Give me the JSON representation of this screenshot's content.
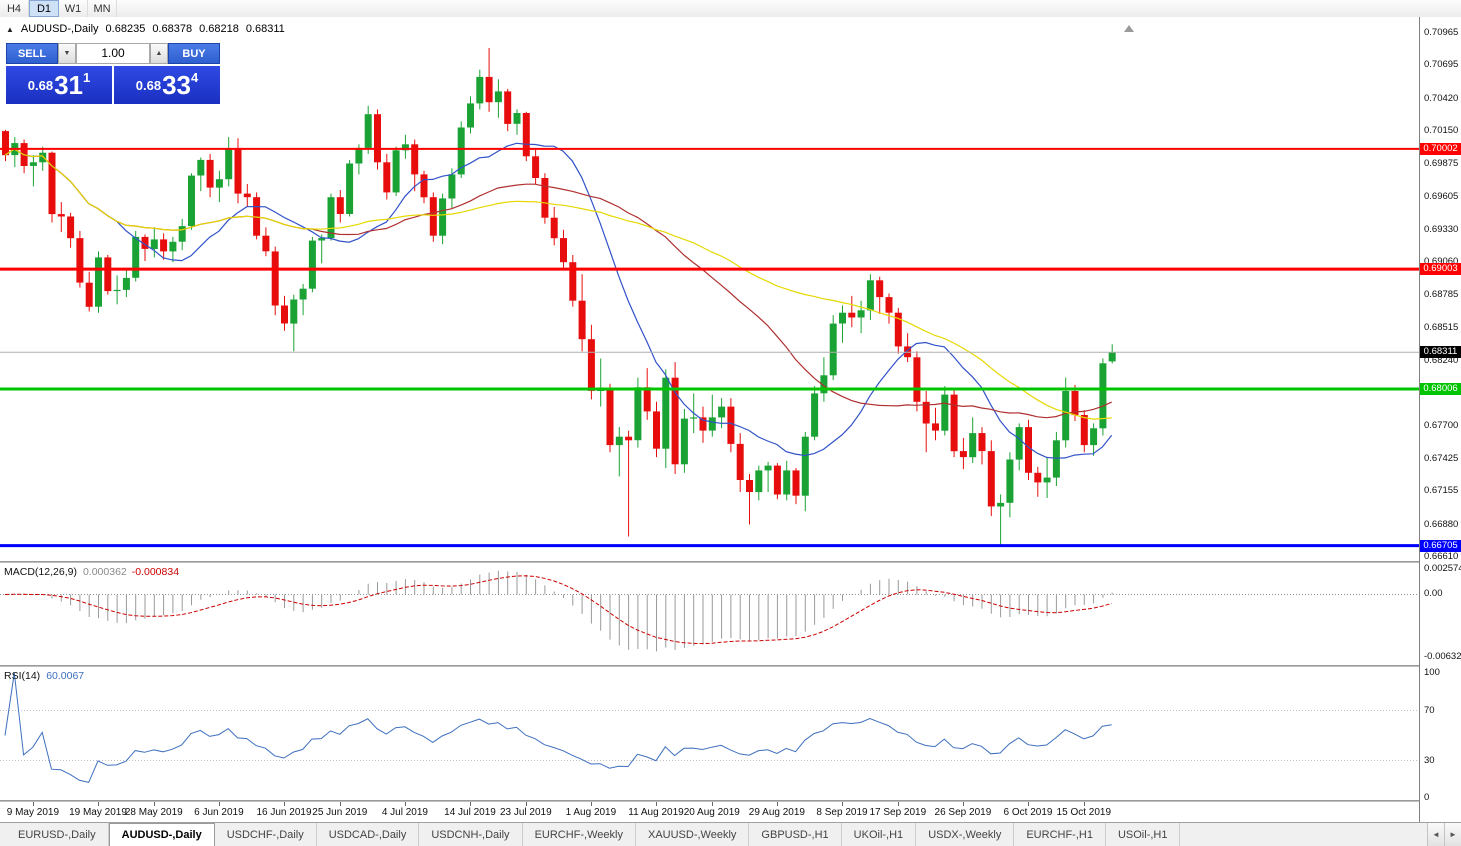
{
  "toolbar": {
    "timeframes": [
      {
        "label": "H4",
        "active": false
      },
      {
        "label": "D1",
        "active": true
      },
      {
        "label": "W1",
        "active": false
      },
      {
        "label": "MN",
        "active": false
      }
    ]
  },
  "icons": {
    "chart": "▲",
    "volume_down": "▼",
    "volume_up": "▲",
    "tab_scroll_left": "◄",
    "tab_scroll_right": "►"
  },
  "chart_header": {
    "symbol": "AUDUSD-,Daily",
    "open": "0.68235",
    "high": "0.68378",
    "low": "0.68218",
    "close": "0.68311"
  },
  "trade_panel": {
    "sell_label": "SELL",
    "buy_label": "BUY",
    "volume": "1.00",
    "bid": {
      "prefix": "0.68",
      "big": "31",
      "sup": "1"
    },
    "ask": {
      "prefix": "0.68",
      "big": "33",
      "sup": "4"
    }
  },
  "price_axis": {
    "ticks": [
      "0.70965",
      "0.70695",
      "0.70420",
      "0.70150",
      "0.69875",
      "0.69605",
      "0.69330",
      "0.69060",
      "0.68785",
      "0.68515",
      "0.68240",
      "0.67970",
      "0.67700",
      "0.67425",
      "0.67155",
      "0.66880",
      "0.66610"
    ]
  },
  "hlines": [
    {
      "value": 0.70002,
      "label": "0.70002",
      "color": "#ff0000",
      "width": 2
    },
    {
      "value": 0.69003,
      "label": "0.69003",
      "color": "#ff0000",
      "width": 3
    },
    {
      "value": 0.68006,
      "label": "0.68006",
      "color": "#00c400",
      "width": 3
    },
    {
      "value": 0.66705,
      "label": "0.66705",
      "color": "#0000ff",
      "width": 3
    }
  ],
  "bid_line": {
    "value": 0.68311,
    "label": "0.68311",
    "tag_color": "#000000",
    "line_color": "#b0b0b0"
  },
  "indicators": {
    "macd": {
      "name": "MACD(12,26,9)",
      "value_main": "0.000362",
      "value_signal": "-0.000834",
      "axis_labels": [
        "0.002574",
        "0.00",
        "-0.006326"
      ],
      "range": [
        -0.006326,
        0.002574
      ],
      "fast": 12,
      "slow": 26,
      "signal": 9,
      "histogram_color": "#9a9a9a",
      "signal_color": "#cc0000"
    },
    "rsi": {
      "name": "RSI(14)",
      "value": "60.0067",
      "period": 14,
      "axis_labels": [
        "100",
        "70",
        "30",
        "0"
      ],
      "levels": [
        70,
        30
      ],
      "line_color": "#3e6fbe"
    }
  },
  "x_axis": {
    "labels": [
      {
        "text": "9 May 2019",
        "bar": 3
      },
      {
        "text": "19 May 2019",
        "bar": 10
      },
      {
        "text": "28 May 2019",
        "bar": 16
      },
      {
        "text": "6 Jun 2019",
        "bar": 23
      },
      {
        "text": "16 Jun 2019",
        "bar": 30
      },
      {
        "text": "25 Jun 2019",
        "bar": 36
      },
      {
        "text": "4 Jul 2019",
        "bar": 43
      },
      {
        "text": "14 Jul 2019",
        "bar": 50
      },
      {
        "text": "23 Jul 2019",
        "bar": 56
      },
      {
        "text": "1 Aug 2019",
        "bar": 63
      },
      {
        "text": "11 Aug 2019",
        "bar": 70
      },
      {
        "text": "20 Aug 2019",
        "bar": 76
      },
      {
        "text": "29 Aug 2019",
        "bar": 83
      },
      {
        "text": "8 Sep 2019",
        "bar": 90
      },
      {
        "text": "17 Sep 2019",
        "bar": 96
      },
      {
        "text": "26 Sep 2019",
        "bar": 103
      },
      {
        "text": "6 Oct 2019",
        "bar": 110
      },
      {
        "text": "15 Oct 2019",
        "bar": 116
      }
    ]
  },
  "tabs": {
    "items": [
      {
        "label": "EURUSD-,Daily",
        "active": false
      },
      {
        "label": "AUDUSD-,Daily",
        "active": true
      },
      {
        "label": "USDCHF-,Daily",
        "active": false
      },
      {
        "label": "USDCAD-,Daily",
        "active": false
      },
      {
        "label": "USDCNH-,Daily",
        "active": false
      },
      {
        "label": "EURCHF-,Weekly",
        "active": false
      },
      {
        "label": "XAUUSD-,Weekly",
        "active": false
      },
      {
        "label": "GBPUSD-,H1",
        "active": false
      },
      {
        "label": "UKOil-,H1",
        "active": false
      },
      {
        "label": "USDX-,Weekly",
        "active": false
      },
      {
        "label": "EURCHF-,H1",
        "active": false
      },
      {
        "label": "USOil-,H1",
        "active": false
      }
    ]
  },
  "chart_data": {
    "type": "candlestick",
    "symbol": "AUDUSD",
    "timeframe": "Daily",
    "title": "AUDUSD-,Daily",
    "colors": {
      "up": "#1aa334",
      "down": "#e80d0d"
    },
    "overlays": [
      {
        "name": "ma-fast-line",
        "period": 13,
        "color": "#3152c8"
      },
      {
        "name": "ma-mid-line",
        "period": 34,
        "color": "#b03030"
      },
      {
        "name": "ma-slow-line",
        "period": 55,
        "color": "#e6d800"
      }
    ],
    "hlevels": [
      0.70002,
      0.69003,
      0.68006,
      0.66705
    ],
    "last_ohlc": {
      "open": 0.68235,
      "high": 0.68378,
      "low": 0.68218,
      "close": 0.68311
    },
    "candles": [
      [
        0.7015,
        0.7016,
        0.699,
        0.6995
      ],
      [
        0.6995,
        0.701,
        0.6985,
        0.7005
      ],
      [
        0.7005,
        0.7008,
        0.698,
        0.6986
      ],
      [
        0.6986,
        0.6995,
        0.6969,
        0.6989
      ],
      [
        0.6989,
        0.7002,
        0.6982,
        0.6997
      ],
      [
        0.6997,
        0.6998,
        0.6939,
        0.6946
      ],
      [
        0.6946,
        0.6956,
        0.6931,
        0.6944
      ],
      [
        0.6944,
        0.6947,
        0.6918,
        0.6926
      ],
      [
        0.6926,
        0.6932,
        0.6885,
        0.6889
      ],
      [
        0.6889,
        0.6898,
        0.6865,
        0.6869
      ],
      [
        0.6869,
        0.6915,
        0.6864,
        0.691
      ],
      [
        0.691,
        0.6912,
        0.6879,
        0.6882
      ],
      [
        0.6882,
        0.6895,
        0.6871,
        0.6883
      ],
      [
        0.6883,
        0.69,
        0.6877,
        0.6893
      ],
      [
        0.6893,
        0.6932,
        0.689,
        0.6927
      ],
      [
        0.6927,
        0.6929,
        0.6907,
        0.6917
      ],
      [
        0.6917,
        0.6935,
        0.691,
        0.6925
      ],
      [
        0.6925,
        0.693,
        0.6908,
        0.6915
      ],
      [
        0.6915,
        0.6927,
        0.6906,
        0.6923
      ],
      [
        0.6923,
        0.6942,
        0.6916,
        0.6936
      ],
      [
        0.6936,
        0.698,
        0.6933,
        0.6978
      ],
      [
        0.6978,
        0.6993,
        0.6965,
        0.6991
      ],
      [
        0.6991,
        0.6996,
        0.696,
        0.6968
      ],
      [
        0.6968,
        0.6982,
        0.6956,
        0.6975
      ],
      [
        0.6975,
        0.701,
        0.6969,
        0.7
      ],
      [
        0.7,
        0.7009,
        0.6955,
        0.6963
      ],
      [
        0.6963,
        0.6971,
        0.6952,
        0.696
      ],
      [
        0.696,
        0.6964,
        0.6925,
        0.6928
      ],
      [
        0.6928,
        0.6935,
        0.6911,
        0.6915
      ],
      [
        0.6915,
        0.6919,
        0.6862,
        0.687
      ],
      [
        0.687,
        0.6878,
        0.6849,
        0.6855
      ],
      [
        0.6855,
        0.6879,
        0.6832,
        0.6875
      ],
      [
        0.6875,
        0.6888,
        0.6862,
        0.6884
      ],
      [
        0.6884,
        0.6927,
        0.6881,
        0.6924
      ],
      [
        0.6924,
        0.6929,
        0.6905,
        0.6926
      ],
      [
        0.6926,
        0.6963,
        0.6924,
        0.696
      ],
      [
        0.696,
        0.6966,
        0.6939,
        0.6946
      ],
      [
        0.6946,
        0.6991,
        0.6944,
        0.6988
      ],
      [
        0.6988,
        0.7004,
        0.6979,
        0.7001
      ],
      [
        0.7001,
        0.7036,
        0.6996,
        0.7029
      ],
      [
        0.7029,
        0.7033,
        0.6983,
        0.6989
      ],
      [
        0.6989,
        0.6996,
        0.6958,
        0.6964
      ],
      [
        0.6964,
        0.7002,
        0.6961,
        0.6999
      ],
      [
        0.6999,
        0.7012,
        0.6992,
        0.7004
      ],
      [
        0.7004,
        0.7008,
        0.6965,
        0.6979
      ],
      [
        0.6979,
        0.6982,
        0.6955,
        0.696
      ],
      [
        0.696,
        0.6964,
        0.6923,
        0.6928
      ],
      [
        0.6928,
        0.6963,
        0.6921,
        0.6959
      ],
      [
        0.6959,
        0.6984,
        0.6951,
        0.6979
      ],
      [
        0.6979,
        0.7023,
        0.6976,
        0.7018
      ],
      [
        0.7018,
        0.7044,
        0.7013,
        0.7038
      ],
      [
        0.7038,
        0.7066,
        0.7033,
        0.706
      ],
      [
        0.706,
        0.7084,
        0.7031,
        0.7039
      ],
      [
        0.7039,
        0.7058,
        0.7026,
        0.7048
      ],
      [
        0.7048,
        0.705,
        0.7015,
        0.7021
      ],
      [
        0.7021,
        0.7033,
        0.7012,
        0.703
      ],
      [
        0.703,
        0.7031,
        0.699,
        0.6994
      ],
      [
        0.6994,
        0.7,
        0.6971,
        0.6976
      ],
      [
        0.6976,
        0.698,
        0.6938,
        0.6943
      ],
      [
        0.6943,
        0.6952,
        0.692,
        0.6926
      ],
      [
        0.6926,
        0.6933,
        0.6901,
        0.6906
      ],
      [
        0.6906,
        0.6912,
        0.6869,
        0.6874
      ],
      [
        0.6874,
        0.6896,
        0.6832,
        0.6842
      ],
      [
        0.6842,
        0.6854,
        0.6792,
        0.6799
      ],
      [
        0.6799,
        0.6826,
        0.6786,
        0.68
      ],
      [
        0.68,
        0.6805,
        0.6748,
        0.6754
      ],
      [
        0.6754,
        0.6769,
        0.6728,
        0.6761
      ],
      [
        0.6761,
        0.6766,
        0.6678,
        0.6758
      ],
      [
        0.6758,
        0.681,
        0.6752,
        0.6802
      ],
      [
        0.6802,
        0.6818,
        0.6775,
        0.6782
      ],
      [
        0.6782,
        0.679,
        0.6744,
        0.6751
      ],
      [
        0.6751,
        0.6817,
        0.6735,
        0.681
      ],
      [
        0.681,
        0.6823,
        0.673,
        0.6738
      ],
      [
        0.6738,
        0.6784,
        0.6731,
        0.6776
      ],
      [
        0.6776,
        0.6797,
        0.6764,
        0.6777
      ],
      [
        0.6777,
        0.6786,
        0.6756,
        0.6766
      ],
      [
        0.6766,
        0.6796,
        0.6761,
        0.6777
      ],
      [
        0.6777,
        0.6793,
        0.6768,
        0.6786
      ],
      [
        0.6786,
        0.6793,
        0.6748,
        0.6755
      ],
      [
        0.6755,
        0.6764,
        0.6715,
        0.6725
      ],
      [
        0.6725,
        0.673,
        0.6688,
        0.6715
      ],
      [
        0.6715,
        0.6737,
        0.6708,
        0.6733
      ],
      [
        0.6733,
        0.674,
        0.6715,
        0.6737
      ],
      [
        0.6737,
        0.6739,
        0.6709,
        0.6713
      ],
      [
        0.6713,
        0.6741,
        0.6708,
        0.6733
      ],
      [
        0.6733,
        0.6735,
        0.6705,
        0.6712
      ],
      [
        0.6712,
        0.6765,
        0.6699,
        0.6761
      ],
      [
        0.6761,
        0.6803,
        0.6758,
        0.6797
      ],
      [
        0.6797,
        0.6827,
        0.679,
        0.6812
      ],
      [
        0.6812,
        0.6862,
        0.6808,
        0.6855
      ],
      [
        0.6855,
        0.687,
        0.6839,
        0.6864
      ],
      [
        0.6864,
        0.6878,
        0.6852,
        0.686
      ],
      [
        0.686,
        0.6874,
        0.6847,
        0.6866
      ],
      [
        0.6866,
        0.6896,
        0.6858,
        0.6891
      ],
      [
        0.6891,
        0.6894,
        0.6863,
        0.6877
      ],
      [
        0.6877,
        0.688,
        0.6855,
        0.6864
      ],
      [
        0.6864,
        0.6868,
        0.683,
        0.6836
      ],
      [
        0.6836,
        0.6847,
        0.6823,
        0.6827
      ],
      [
        0.6827,
        0.6832,
        0.6782,
        0.679
      ],
      [
        0.679,
        0.6799,
        0.6748,
        0.6772
      ],
      [
        0.6772,
        0.6785,
        0.6758,
        0.6766
      ],
      [
        0.6766,
        0.6803,
        0.6762,
        0.6796
      ],
      [
        0.6796,
        0.6801,
        0.6744,
        0.6749
      ],
      [
        0.6749,
        0.676,
        0.6734,
        0.6744
      ],
      [
        0.6744,
        0.6777,
        0.6739,
        0.6764
      ],
      [
        0.6764,
        0.6769,
        0.6738,
        0.6749
      ],
      [
        0.6749,
        0.6758,
        0.6695,
        0.6703
      ],
      [
        0.6703,
        0.6713,
        0.6671,
        0.6706
      ],
      [
        0.6706,
        0.6748,
        0.6694,
        0.6742
      ],
      [
        0.6742,
        0.6772,
        0.6733,
        0.6769
      ],
      [
        0.6769,
        0.6775,
        0.6725,
        0.6731
      ],
      [
        0.6731,
        0.6736,
        0.6711,
        0.6723
      ],
      [
        0.6723,
        0.6744,
        0.671,
        0.6727
      ],
      [
        0.6727,
        0.6765,
        0.672,
        0.6758
      ],
      [
        0.6758,
        0.681,
        0.6752,
        0.6799
      ],
      [
        0.6799,
        0.6804,
        0.6774,
        0.6779
      ],
      [
        0.6779,
        0.6783,
        0.6748,
        0.6754
      ],
      [
        0.6754,
        0.6772,
        0.6745,
        0.6768
      ],
      [
        0.6768,
        0.6826,
        0.6762,
        0.6822
      ],
      [
        0.68235,
        0.68378,
        0.68218,
        0.68311
      ]
    ]
  }
}
